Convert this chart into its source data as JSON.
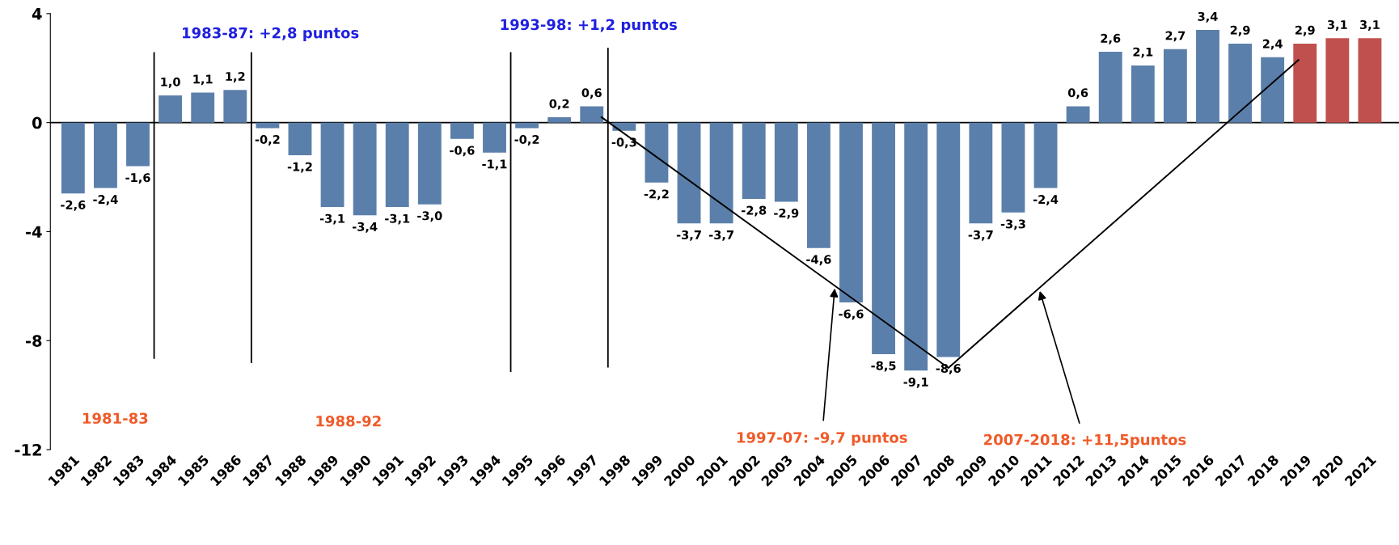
{
  "chart_data": {
    "type": "bar",
    "x": [
      1981,
      1982,
      1983,
      1984,
      1985,
      1986,
      1987,
      1988,
      1989,
      1990,
      1991,
      1992,
      1993,
      1994,
      1995,
      1996,
      1997,
      1998,
      1999,
      2000,
      2001,
      2002,
      2003,
      2004,
      2005,
      2006,
      2007,
      2008,
      2009,
      2010,
      2011,
      2012,
      2013,
      2014,
      2015,
      2016,
      2017,
      2018,
      2019,
      2020,
      2021
    ],
    "series": [
      {
        "values": [
          -2.6,
          -2.4,
          -1.6,
          1.0,
          1.1,
          1.2,
          -0.2,
          -1.2,
          -3.1,
          -3.4,
          -3.1,
          -3.0,
          -0.6,
          -1.1,
          -0.2,
          0.2,
          0.6,
          -0.3,
          -2.2,
          -3.7,
          -3.7,
          -2.8,
          -2.9,
          -4.6,
          -6.6,
          -8.5,
          -9.1,
          -8.6,
          -3.7,
          -3.3,
          -2.4,
          0.6,
          2.6,
          2.1,
          2.7,
          3.4,
          2.9,
          2.4,
          2.9,
          3.1,
          3.1
        ],
        "value_labels": [
          "-2,6",
          "-2,4",
          "-1,6",
          "1,0",
          "1,1",
          "1,2",
          "-0,2",
          "-1,2",
          "-3,1",
          "-3,4",
          "-3,1",
          "-3,0",
          "-0,6",
          "-1,1",
          "-0,2",
          "0,2",
          "0,6",
          "-0,3",
          "-2,2",
          "-3,7",
          "-3,7",
          "-2,8",
          "-2,9",
          "-4,6",
          "-6,6",
          "-8,5",
          "-9,1",
          "-8,6",
          "-3,7",
          "-3,3",
          "-2,4",
          "0,6",
          "2,6",
          "2,1",
          "2,7",
          "3,4",
          "2,9",
          "2,4",
          "2,9",
          "3,1",
          "3,1"
        ],
        "colors": [
          "#5b7fab",
          "#5b7fab",
          "#5b7fab",
          "#5b7fab",
          "#5b7fab",
          "#5b7fab",
          "#5b7fab",
          "#5b7fab",
          "#5b7fab",
          "#5b7fab",
          "#5b7fab",
          "#5b7fab",
          "#5b7fab",
          "#5b7fab",
          "#5b7fab",
          "#5b7fab",
          "#5b7fab",
          "#5b7fab",
          "#5b7fab",
          "#5b7fab",
          "#5b7fab",
          "#5b7fab",
          "#5b7fab",
          "#5b7fab",
          "#5b7fab",
          "#5b7fab",
          "#5b7fab",
          "#5b7fab",
          "#5b7fab",
          "#5b7fab",
          "#5b7fab",
          "#5b7fab",
          "#5b7fab",
          "#5b7fab",
          "#5b7fab",
          "#5b7fab",
          "#5b7fab",
          "#5b7fab",
          "#c0504d",
          "#c0504d",
          "#c0504d"
        ]
      },
      {
        "type": "line",
        "color": "#000000",
        "x": [
          1997.3,
          2008,
          2018.8
        ],
        "values": [
          0.2,
          -9.0,
          2.3
        ]
      }
    ],
    "xlim": [
      1980.3,
      2021.9
    ],
    "xticks": [
      1981,
      1982,
      1983,
      1984,
      1985,
      1986,
      1987,
      1988,
      1989,
      1990,
      1991,
      1992,
      1993,
      1994,
      1995,
      1996,
      1997,
      1998,
      1999,
      2000,
      2001,
      2002,
      2003,
      2004,
      2005,
      2006,
      2007,
      2008,
      2009,
      2010,
      2011,
      2012,
      2013,
      2014,
      2015,
      2016,
      2017,
      2018,
      2019,
      2020,
      2021
    ],
    "ylim": [
      -12,
      4
    ],
    "yticks": [
      -12,
      -8,
      -4,
      0,
      4
    ],
    "ref_lines": [
      {
        "axis": "y",
        "value": 0,
        "color": "#000000"
      },
      {
        "axis": "x",
        "value": 1983.5,
        "color": "#000000"
      },
      {
        "axis": "x",
        "value": 1986.5,
        "color": "#000000"
      },
      {
        "axis": "x",
        "value": 1994.5,
        "color": "#000000"
      },
      {
        "axis": "x",
        "value": 1997.5,
        "color": "#000000"
      }
    ],
    "grid": false,
    "legend": false,
    "annotations": [
      "1983-87: +2,8 puntos",
      "1993-98: +1,2 puntos",
      "1981-83",
      "1988-92",
      {
        "text": "1997-07: -9,7 puntos",
        "x": 2004.5,
        "y": -6.0
      },
      {
        "text": "2007-2018: +11,5puntos",
        "x": 2010.8,
        "y": -6.1
      }
    ]
  }
}
